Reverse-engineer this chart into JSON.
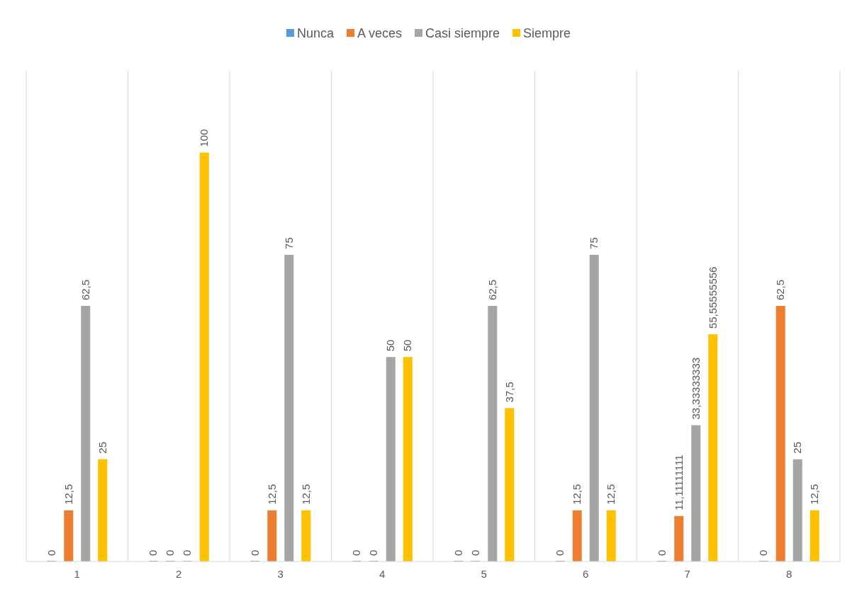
{
  "chart_data": {
    "type": "bar",
    "categories": [
      "1",
      "2",
      "3",
      "4",
      "5",
      "6",
      "7",
      "8"
    ],
    "series": [
      {
        "name": "Nunca",
        "color": "#5b9bd5",
        "values": [
          0,
          0,
          0,
          0,
          0,
          0,
          0,
          0
        ],
        "value_labels": [
          "0",
          "0",
          "0",
          "0",
          "0",
          "0",
          "0",
          "0"
        ]
      },
      {
        "name": "A veces",
        "color": "#ed7d31",
        "values": [
          12.5,
          0,
          12.5,
          0,
          0,
          12.5,
          11.11111111,
          62.5
        ],
        "value_labels": [
          "12,5",
          "0",
          "12,5",
          "0",
          "0",
          "12,5",
          "11,11111111",
          "62,5"
        ]
      },
      {
        "name": "Casi siempre",
        "color": "#a5a5a5",
        "values": [
          62.5,
          0,
          75,
          50,
          62.5,
          75,
          33.33333333,
          25
        ],
        "value_labels": [
          "62,5",
          "0",
          "75",
          "50",
          "62,5",
          "75",
          "33,33333333",
          "25"
        ]
      },
      {
        "name": "Siempre",
        "color": "#ffc000",
        "values": [
          25,
          100,
          12.5,
          50,
          37.5,
          12.5,
          55.55555556,
          12.5
        ],
        "value_labels": [
          "25",
          "100",
          "12,5",
          "50",
          "37,5",
          "12,5",
          "55,55555556",
          "12,5"
        ]
      }
    ],
    "grid": "x",
    "legend": "top",
    "tick_labels": "x"
  }
}
